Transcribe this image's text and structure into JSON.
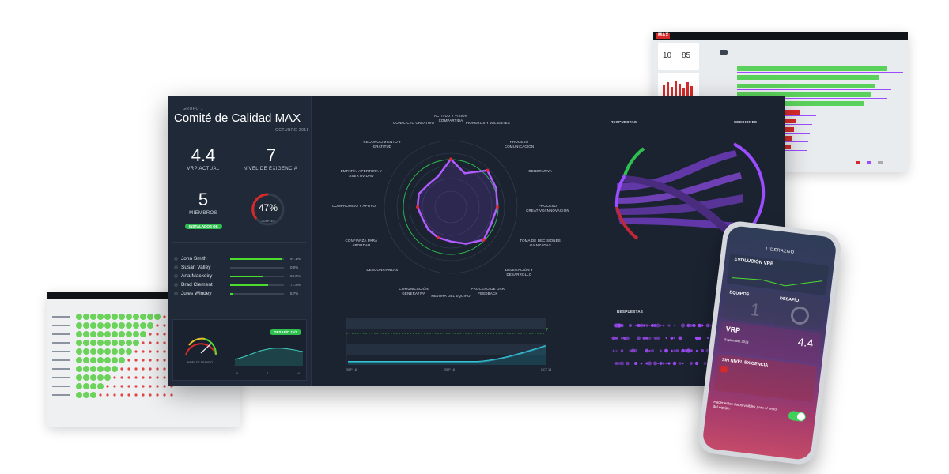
{
  "top_right_shot": {
    "logo": "MAX",
    "tabs": [
      "",
      "",
      "",
      "",
      ""
    ],
    "stats": [
      {
        "value": "10"
      },
      {
        "value": "85"
      }
    ]
  },
  "main": {
    "group": "GRUPO 1",
    "title": "Comité de Calidad MAX",
    "date": "OCTUBRE 2018",
    "vrp_value": "4.4",
    "vrp_label": "VRP ACTUAL",
    "nivel_value": "7",
    "nivel_label": "NIVEL DE EXIGENCIA",
    "miembros_value": "5",
    "miembros_label": "MIEMBROS",
    "instalados_badge": "INSTALADOS OK",
    "gauge_percent": "47%",
    "gauge_label": "CUMPLES",
    "members": [
      {
        "name": "John Smith",
        "pct": "97.1%",
        "fill": 0.97
      },
      {
        "name": "Susan Valley",
        "pct": "0.0%",
        "fill": 0.0
      },
      {
        "name": "Ana Mackeiry",
        "pct": "60.0%",
        "fill": 0.6
      },
      {
        "name": "Brad Clement",
        "pct": "71.4%",
        "fill": 0.71
      },
      {
        "name": "Jules Windey",
        "pct": "5.7%",
        "fill": 0.057
      }
    ],
    "bottom_badge": "DESAFÍO 11/1",
    "speed_label": "NIVEL DE DESAFÍO",
    "spark_ticks": [
      "0",
      "7",
      "14"
    ],
    "radar_labels": [
      "ACTITUD Y VISIÓN COMPARTIDA",
      "PIONEROS Y VALIENTES",
      "PROCESO COMUNICACIÓN",
      "GENERATIVA",
      "PROCESO CREATIVO/INNOVACIÓN",
      "TOMA DE DECISIONES AVANZADAS",
      "DELEGACIÓN Y DESARROLLO",
      "PROCESO DE DAR FEEDBACK",
      "MEJORA DEL EQUIPO",
      "COMUNICACIÓN GENERATIVA",
      "DESCONFIANZAS",
      "CONFIANZA PARA ABORDAR",
      "COMPROMISO Y APOYO",
      "EMPATÍA, APERTURA Y ASERTIVIDAD",
      "RECONOCIMIENTO Y GRATITUD",
      "CONFLICTO CREATIVO"
    ],
    "timeline_dates": [
      "SEP 18",
      "SEP 18",
      "OCT 18"
    ],
    "timeline_value": "7",
    "respuestas_label": "RESPUESTAS",
    "secciones_label": "SECCIONES",
    "respuestas_label2": "RESPUESTAS"
  },
  "phone": {
    "header": "LIDERAZGO",
    "evolucion": "EVOLUCIÓN VRP",
    "equipos": "EQUIPOS",
    "equipos_value": "1",
    "desafio": "DESAFÍO",
    "vrp_title": "VRP",
    "vrp_value": "4.4",
    "vrp_date": "Septiembre 2018",
    "sin_nivel": "SIN NIVEL EXIGENCIA",
    "toggle_text": "Hacer estos datos visibles para el resto del equipo"
  },
  "colors": {
    "accent_green": "#4cdc2e",
    "accent_purple": "#9b4dff",
    "accent_red": "#d62a2a",
    "dark_bg": "#1b2331"
  }
}
